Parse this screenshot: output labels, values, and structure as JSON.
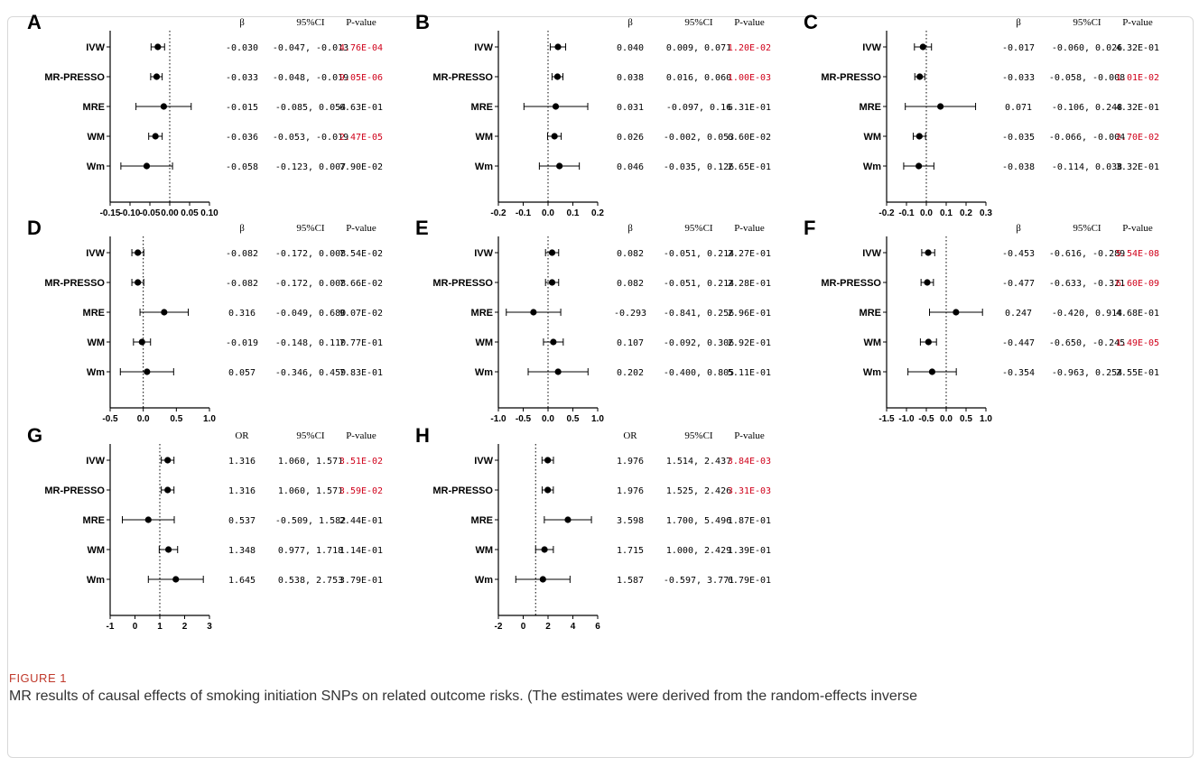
{
  "figure": {
    "label": "FIGURE 1",
    "caption": "MR results of causal effects of smoking initiation SNPs on related outcome risks. (The estimates were derived from the random-effects inverse"
  },
  "colors": {
    "significant": "#d0021b",
    "text": "#000000"
  },
  "methods": [
    "IVW",
    "MR-PRESSO",
    "MRE",
    "WM",
    "Wm"
  ],
  "chart_data": [
    {
      "panel": "A",
      "type": "forest",
      "effect_header": "β",
      "ci_header": "95%CI",
      "p_header": "P-value",
      "xlim": [
        -0.15,
        0.1
      ],
      "ref_line": 0,
      "xticks": [
        "-0.15",
        "-0.10",
        "-0.05",
        "0.00",
        "0.05",
        "0.10"
      ],
      "rows": [
        {
          "method": "IVW",
          "est": -0.03,
          "lo": -0.047,
          "hi": -0.013,
          "effect": "-0.030",
          "ci": "-0.047, -0.013",
          "p": "4.76E-04",
          "sig": true
        },
        {
          "method": "MR-PRESSO",
          "est": -0.033,
          "lo": -0.048,
          "hi": -0.019,
          "effect": "-0.033",
          "ci": "-0.048, -0.019",
          "p": "9.05E-06",
          "sig": true
        },
        {
          "method": "MRE",
          "est": -0.015,
          "lo": -0.085,
          "hi": 0.054,
          "effect": "-0.015",
          "ci": "-0.085, 0.054",
          "p": "6.63E-01",
          "sig": false
        },
        {
          "method": "WM",
          "est": -0.036,
          "lo": -0.053,
          "hi": -0.019,
          "effect": "-0.036",
          "ci": "-0.053, -0.019",
          "p": "2.47E-05",
          "sig": true
        },
        {
          "method": "Wm",
          "est": -0.058,
          "lo": -0.123,
          "hi": 0.007,
          "effect": "-0.058",
          "ci": "-0.123, 0.007",
          "p": "7.90E-02",
          "sig": false
        }
      ]
    },
    {
      "panel": "B",
      "type": "forest",
      "effect_header": "β",
      "ci_header": "95%CI",
      "p_header": "P-value",
      "xlim": [
        -0.2,
        0.2
      ],
      "ref_line": 0,
      "xticks": [
        "-0.2",
        "-0.1",
        "0.0",
        "0.1",
        "0.2"
      ],
      "rows": [
        {
          "method": "IVW",
          "est": 0.04,
          "lo": 0.009,
          "hi": 0.071,
          "effect": "0.040",
          "ci": "0.009, 0.071",
          "p": "1.20E-02",
          "sig": true
        },
        {
          "method": "MR-PRESSO",
          "est": 0.038,
          "lo": 0.016,
          "hi": 0.06,
          "effect": "0.038",
          "ci": "0.016, 0.060",
          "p": "1.00E-03",
          "sig": true
        },
        {
          "method": "MRE",
          "est": 0.031,
          "lo": -0.097,
          "hi": 0.16,
          "effect": "0.031",
          "ci": "-0.097, 0.16",
          "p": "6.31E-01",
          "sig": false
        },
        {
          "method": "WM",
          "est": 0.026,
          "lo": -0.002,
          "hi": 0.053,
          "effect": "0.026",
          "ci": "-0.002, 0.053",
          "p": "6.60E-02",
          "sig": false
        },
        {
          "method": "Wm",
          "est": 0.046,
          "lo": -0.035,
          "hi": 0.126,
          "effect": "0.046",
          "ci": "-0.035, 0.126",
          "p": "2.65E-01",
          "sig": false
        }
      ]
    },
    {
      "panel": "C",
      "type": "forest",
      "effect_header": "β",
      "ci_header": "95%CI",
      "p_header": "P-value",
      "xlim": [
        -0.2,
        0.3
      ],
      "ref_line": 0,
      "xticks": [
        "-0.2",
        "-0.1",
        "0.0",
        "0.1",
        "0.2",
        "0.3"
      ],
      "rows": [
        {
          "method": "IVW",
          "est": -0.017,
          "lo": -0.06,
          "hi": 0.026,
          "effect": "-0.017",
          "ci": "-0.060, 0.026",
          "p": "4.32E-01",
          "sig": false
        },
        {
          "method": "MR-PRESSO",
          "est": -0.033,
          "lo": -0.058,
          "hi": -0.008,
          "effect": "-0.033",
          "ci": "-0.058, -0.008",
          "p": "1.01E-02",
          "sig": true
        },
        {
          "method": "MRE",
          "est": 0.071,
          "lo": -0.106,
          "hi": 0.248,
          "effect": "0.071",
          "ci": "-0.106, 0.248",
          "p": "4.32E-01",
          "sig": false
        },
        {
          "method": "WM",
          "est": -0.035,
          "lo": -0.066,
          "hi": -0.004,
          "effect": "-0.035",
          "ci": "-0.066, -0.004",
          "p": "2.70E-02",
          "sig": true
        },
        {
          "method": "Wm",
          "est": -0.038,
          "lo": -0.114,
          "hi": 0.038,
          "effect": "-0.038",
          "ci": "-0.114, 0.038",
          "p": "3.32E-01",
          "sig": false
        }
      ]
    },
    {
      "panel": "D",
      "type": "forest",
      "effect_header": "β",
      "ci_header": "95%CI",
      "p_header": "P-value",
      "xlim": [
        -0.5,
        1.0
      ],
      "ref_line": 0,
      "xticks": [
        "-0.5",
        "0.0",
        "0.5",
        "1.0"
      ],
      "rows": [
        {
          "method": "IVW",
          "est": -0.082,
          "lo": -0.172,
          "hi": 0.008,
          "effect": "-0.082",
          "ci": "-0.172, 0.008",
          "p": "7.54E-02",
          "sig": false
        },
        {
          "method": "MR-PRESSO",
          "est": -0.082,
          "lo": -0.172,
          "hi": 0.008,
          "effect": "-0.082",
          "ci": "-0.172, 0.008",
          "p": "7.66E-02",
          "sig": false
        },
        {
          "method": "MRE",
          "est": 0.316,
          "lo": -0.049,
          "hi": 0.68,
          "effect": "0.316",
          "ci": "-0.049, 0.680",
          "p": "9.07E-02",
          "sig": false
        },
        {
          "method": "WM",
          "est": -0.019,
          "lo": -0.148,
          "hi": 0.11,
          "effect": "-0.019",
          "ci": "-0.148, 0.110",
          "p": "7.77E-01",
          "sig": false
        },
        {
          "method": "Wm",
          "est": 0.057,
          "lo": -0.346,
          "hi": 0.459,
          "effect": "0.057",
          "ci": "-0.346, 0.459",
          "p": "7.83E-01",
          "sig": false
        }
      ]
    },
    {
      "panel": "E",
      "type": "forest",
      "effect_header": "β",
      "ci_header": "95%CI",
      "p_header": "P-value",
      "xlim": [
        -1.0,
        1.0
      ],
      "ref_line": 0,
      "xticks": [
        "-1.0",
        "-0.5",
        "0.0",
        "0.5",
        "1.0"
      ],
      "rows": [
        {
          "method": "IVW",
          "est": 0.082,
          "lo": -0.051,
          "hi": 0.214,
          "effect": "0.082",
          "ci": "-0.051, 0.214",
          "p": "2.27E-01",
          "sig": false
        },
        {
          "method": "MR-PRESSO",
          "est": 0.082,
          "lo": -0.051,
          "hi": 0.214,
          "effect": "0.082",
          "ci": "-0.051, 0.214",
          "p": "2.28E-01",
          "sig": false
        },
        {
          "method": "MRE",
          "est": -0.293,
          "lo": -0.841,
          "hi": 0.256,
          "effect": "-0.293",
          "ci": "-0.841, 0.256",
          "p": "2.96E-01",
          "sig": false
        },
        {
          "method": "WM",
          "est": 0.107,
          "lo": -0.092,
          "hi": 0.306,
          "effect": "0.107",
          "ci": "-0.092, 0.306",
          "p": "2.92E-01",
          "sig": false
        },
        {
          "method": "Wm",
          "est": 0.202,
          "lo": -0.4,
          "hi": 0.805,
          "effect": "0.202",
          "ci": "-0.400, 0.805",
          "p": "5.11E-01",
          "sig": false
        }
      ]
    },
    {
      "panel": "F",
      "type": "forest",
      "effect_header": "β",
      "ci_header": "95%CI",
      "p_header": "P-value",
      "xlim": [
        -1.5,
        1.0
      ],
      "ref_line": 0,
      "xticks": [
        "-1.5",
        "-1.0",
        "-0.5",
        "0.0",
        "0.5",
        "1.0"
      ],
      "rows": [
        {
          "method": "IVW",
          "est": -0.453,
          "lo": -0.616,
          "hi": -0.289,
          "effect": "-0.453",
          "ci": "-0.616, -0.289",
          "p": "5.54E-08",
          "sig": true
        },
        {
          "method": "MR-PRESSO",
          "est": -0.477,
          "lo": -0.633,
          "hi": -0.321,
          "effect": "-0.477",
          "ci": "-0.633, -0.321",
          "p": "6.60E-09",
          "sig": true
        },
        {
          "method": "MRE",
          "est": 0.247,
          "lo": -0.42,
          "hi": 0.914,
          "effect": "0.247",
          "ci": "-0.420, 0.914",
          "p": "4.68E-01",
          "sig": false
        },
        {
          "method": "WM",
          "est": -0.447,
          "lo": -0.65,
          "hi": -0.245,
          "effect": "-0.447",
          "ci": "-0.650, -0.245",
          "p": "1.49E-05",
          "sig": true
        },
        {
          "method": "Wm",
          "est": -0.354,
          "lo": -0.963,
          "hi": 0.254,
          "effect": "-0.354",
          "ci": "-0.963, 0.254",
          "p": "2.55E-01",
          "sig": false
        }
      ]
    },
    {
      "panel": "G",
      "type": "forest",
      "effect_header": "OR",
      "ci_header": "95%CI",
      "p_header": "P-value",
      "xlim": [
        -1,
        3
      ],
      "ref_line": 1,
      "xticks": [
        "-1",
        "0",
        "1",
        "2",
        "3"
      ],
      "rows": [
        {
          "method": "IVW",
          "est": 1.316,
          "lo": 1.06,
          "hi": 1.571,
          "effect": "1.316",
          "ci": "1.060, 1.571",
          "p": "3.51E-02",
          "sig": true
        },
        {
          "method": "MR-PRESSO",
          "est": 1.316,
          "lo": 1.06,
          "hi": 1.571,
          "effect": "1.316",
          "ci": "1.060, 1.571",
          "p": "3.59E-02",
          "sig": true
        },
        {
          "method": "MRE",
          "est": 0.537,
          "lo": -0.509,
          "hi": 1.582,
          "effect": "0.537",
          "ci": "-0.509, 1.582",
          "p": "2.44E-01",
          "sig": false
        },
        {
          "method": "WM",
          "est": 1.348,
          "lo": 0.977,
          "hi": 1.718,
          "effect": "1.348",
          "ci": "0.977, 1.718",
          "p": "1.14E-01",
          "sig": false
        },
        {
          "method": "Wm",
          "est": 1.645,
          "lo": 0.538,
          "hi": 2.753,
          "effect": "1.645",
          "ci": "0.538, 2.753",
          "p": "3.79E-01",
          "sig": false
        }
      ]
    },
    {
      "panel": "H",
      "type": "forest",
      "effect_header": "OR",
      "ci_header": "95%CI",
      "p_header": "P-value",
      "xlim": [
        -2,
        6
      ],
      "ref_line": 1,
      "xticks": [
        "-2",
        "0",
        "2",
        "4",
        "6"
      ],
      "rows": [
        {
          "method": "IVW",
          "est": 1.976,
          "lo": 1.514,
          "hi": 2.437,
          "effect": "1.976",
          "ci": "1.514, 2.437",
          "p": "3.84E-03",
          "sig": true
        },
        {
          "method": "MR-PRESSO",
          "est": 1.976,
          "lo": 1.525,
          "hi": 2.426,
          "effect": "1.976",
          "ci": "1.525, 2.426",
          "p": "3.31E-03",
          "sig": true
        },
        {
          "method": "MRE",
          "est": 3.598,
          "lo": 1.7,
          "hi": 5.496,
          "effect": "3.598",
          "ci": "1.700, 5.496",
          "p": "1.87E-01",
          "sig": false
        },
        {
          "method": "WM",
          "est": 1.715,
          "lo": 1.0,
          "hi": 2.429,
          "effect": "1.715",
          "ci": "1.000, 2.429",
          "p": "1.39E-01",
          "sig": false
        },
        {
          "method": "Wm",
          "est": 1.587,
          "lo": -0.597,
          "hi": 3.771,
          "effect": "1.587",
          "ci": "-0.597, 3.771",
          "p": "6.79E-01",
          "sig": false
        }
      ]
    }
  ]
}
